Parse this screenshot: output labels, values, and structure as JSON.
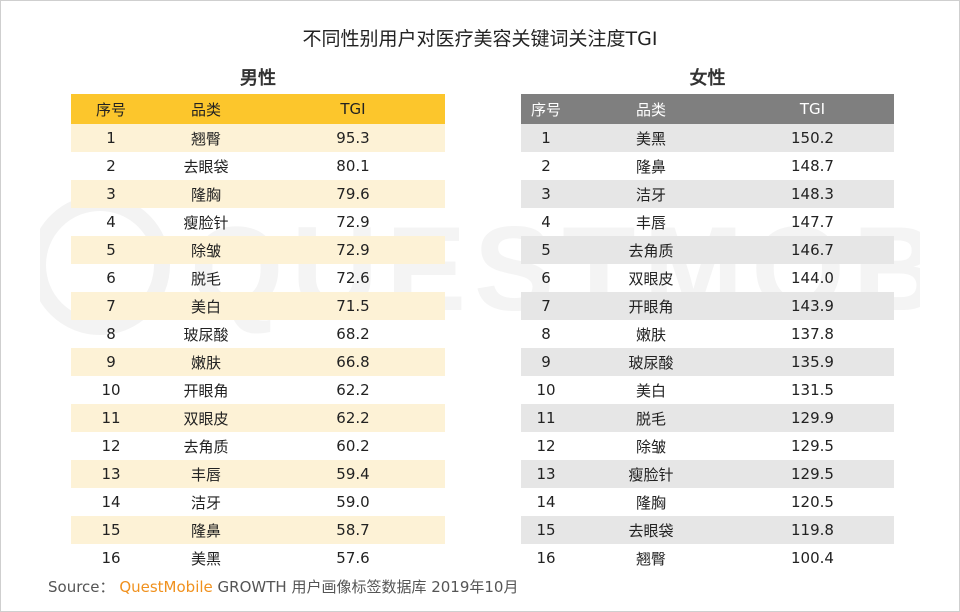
{
  "title": "不同性别用户对医疗美容关键词关注度TGI",
  "watermark_text": "QUESTMOBILE",
  "source": {
    "prefix": "Source：",
    "brand": "QuestMobile",
    "rest": "GROWTH 用户画像标签数据库  2019年10月"
  },
  "colors": {
    "male_header": "#fcc62c",
    "male_stripe": "#fdf2d6",
    "female_header": "#7f7f7f",
    "female_stripe": "#e6e6e6",
    "brand": "#f0911e"
  },
  "chart_data": [
    {
      "type": "table",
      "title": "男性",
      "columns": [
        "序号",
        "品类",
        "TGI"
      ],
      "rows": [
        [
          "1",
          "翘臀",
          "95.3"
        ],
        [
          "2",
          "去眼袋",
          "80.1"
        ],
        [
          "3",
          "隆胸",
          "79.6"
        ],
        [
          "4",
          "瘦脸针",
          "72.9"
        ],
        [
          "5",
          "除皱",
          "72.9"
        ],
        [
          "6",
          "脱毛",
          "72.6"
        ],
        [
          "7",
          "美白",
          "71.5"
        ],
        [
          "8",
          "玻尿酸",
          "68.2"
        ],
        [
          "9",
          "嫩肤",
          "66.8"
        ],
        [
          "10",
          "开眼角",
          "62.2"
        ],
        [
          "11",
          "双眼皮",
          "62.2"
        ],
        [
          "12",
          "去角质",
          "60.2"
        ],
        [
          "13",
          "丰唇",
          "59.4"
        ],
        [
          "14",
          "洁牙",
          "59.0"
        ],
        [
          "15",
          "隆鼻",
          "58.7"
        ],
        [
          "16",
          "美黑",
          "57.6"
        ]
      ]
    },
    {
      "type": "table",
      "title": "女性",
      "columns": [
        "序号",
        "品类",
        "TGI"
      ],
      "rows": [
        [
          "1",
          "美黑",
          "150.2"
        ],
        [
          "2",
          "隆鼻",
          "148.7"
        ],
        [
          "3",
          "洁牙",
          "148.3"
        ],
        [
          "4",
          "丰唇",
          "147.7"
        ],
        [
          "5",
          "去角质",
          "146.7"
        ],
        [
          "6",
          "双眼皮",
          "144.0"
        ],
        [
          "7",
          "开眼角",
          "143.9"
        ],
        [
          "8",
          "嫩肤",
          "137.8"
        ],
        [
          "9",
          "玻尿酸",
          "135.9"
        ],
        [
          "10",
          "美白",
          "131.5"
        ],
        [
          "11",
          "脱毛",
          "129.9"
        ],
        [
          "12",
          "除皱",
          "129.5"
        ],
        [
          "13",
          "瘦脸针",
          "129.5"
        ],
        [
          "14",
          "隆胸",
          "120.5"
        ],
        [
          "15",
          "去眼袋",
          "119.8"
        ],
        [
          "16",
          "翘臀",
          "100.4"
        ]
      ]
    }
  ]
}
